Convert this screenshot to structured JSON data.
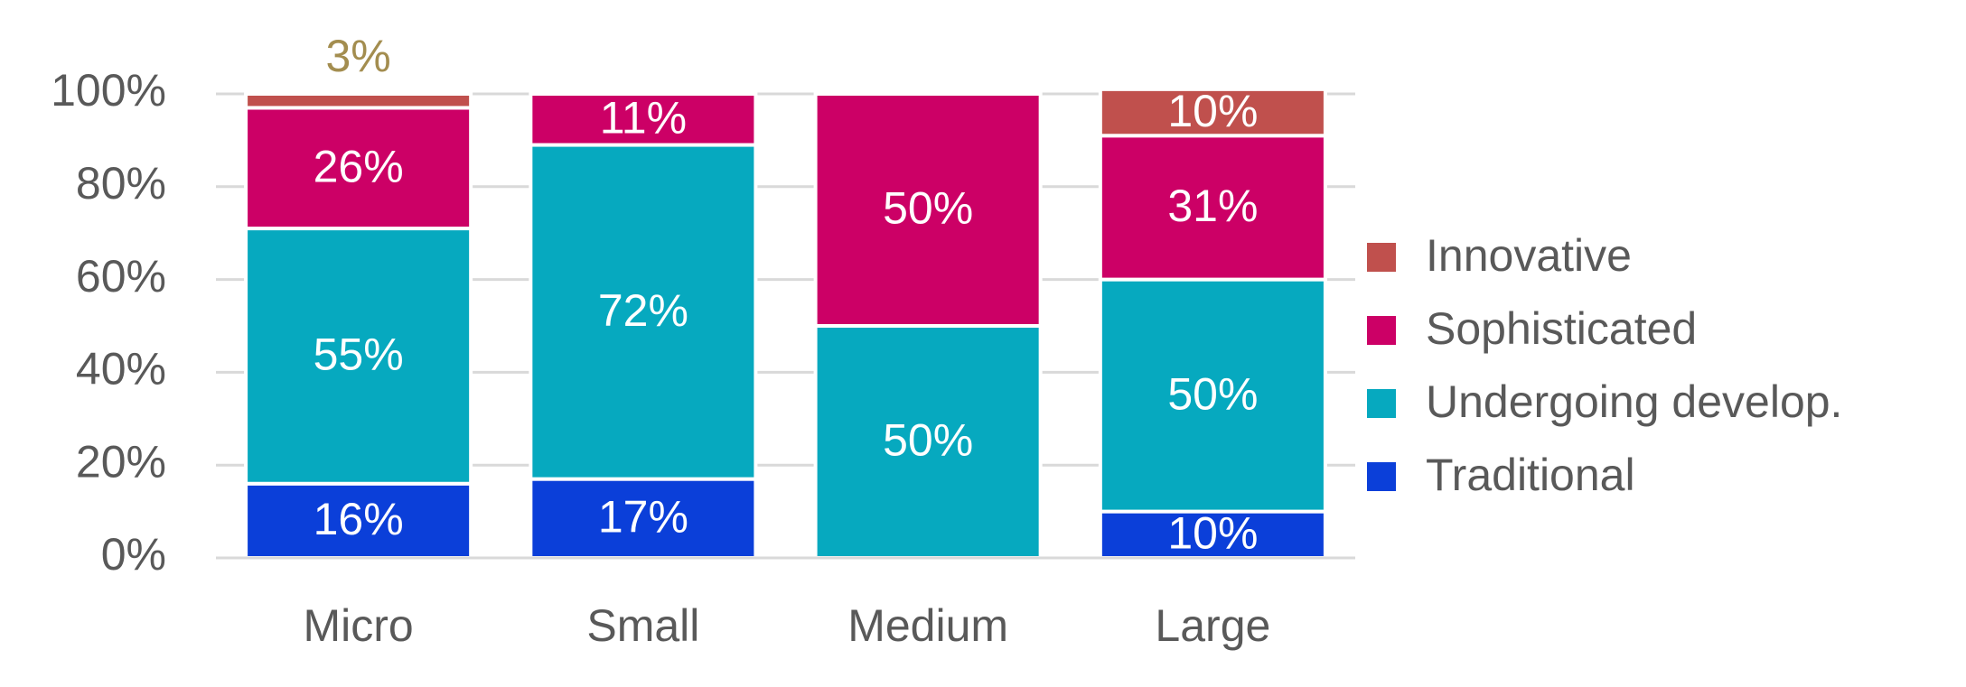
{
  "chart_data": {
    "type": "stacked-bar",
    "categories": [
      "Micro",
      "Small",
      "Medium",
      "Large"
    ],
    "series": [
      {
        "name": "Traditional",
        "color": "#0b3fd9",
        "values": [
          16,
          17,
          null,
          10
        ],
        "value_labels": [
          "16%",
          "17%",
          null,
          "10%"
        ]
      },
      {
        "name": "Undergoing develop.",
        "color": "#06a9bf",
        "values": [
          55,
          72,
          50,
          50
        ],
        "value_labels": [
          "55%",
          "72%",
          "50%",
          "50%"
        ]
      },
      {
        "name": "Sophisticated",
        "color": "#cc0066",
        "values": [
          26,
          11,
          50,
          31
        ],
        "value_labels": [
          "26%",
          "11%",
          "50%",
          "31%"
        ]
      },
      {
        "name": "Innovative",
        "color": "#c0504d",
        "values": [
          3,
          null,
          null,
          10
        ],
        "value_labels": [
          "3%",
          null,
          null,
          "10%"
        ]
      }
    ],
    "ylim": [
      0,
      100
    ],
    "yticks": [
      {
        "value": 0,
        "label": "0%"
      },
      {
        "value": 20,
        "label": "20%"
      },
      {
        "value": 40,
        "label": "40%"
      },
      {
        "value": 60,
        "label": "60%"
      },
      {
        "value": 80,
        "label": "80%"
      },
      {
        "value": 100,
        "label": "100%"
      }
    ],
    "grid": true,
    "legend": "right"
  }
}
